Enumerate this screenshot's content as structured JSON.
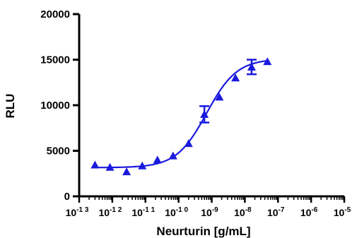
{
  "chart_data": {
    "type": "scatter",
    "xlabel": "Neurturin [g/mL]",
    "ylabel": "RLU",
    "x_scale": "log",
    "xlim": [
      1e-13,
      1e-05
    ],
    "ylim": [
      0,
      20000
    ],
    "grid": false,
    "colors": {
      "series": "#1a1adf",
      "axis": "#000000"
    },
    "y_ticks": [
      {
        "value": 0,
        "label": "0"
      },
      {
        "value": 5000,
        "label": "5000"
      },
      {
        "value": 10000,
        "label": "10000"
      },
      {
        "value": 15000,
        "label": "15000"
      },
      {
        "value": 20000,
        "label": "20000"
      }
    ],
    "x_ticks": [
      {
        "value": 1e-13,
        "base": "10",
        "exp": "-1 3"
      },
      {
        "value": 1e-12,
        "base": "10",
        "exp": "-1 2"
      },
      {
        "value": 1e-11,
        "base": "10",
        "exp": "-1 1"
      },
      {
        "value": 1e-10,
        "base": "10",
        "exp": "-1 0"
      },
      {
        "value": 1e-09,
        "base": "10",
        "exp": "-9"
      },
      {
        "value": 1e-08,
        "base": "10",
        "exp": "-8"
      },
      {
        "value": 1e-07,
        "base": "10",
        "exp": "-7"
      },
      {
        "value": 1e-06,
        "base": "10",
        "exp": "-6"
      },
      {
        "value": 1e-05,
        "base": "10",
        "exp": "-5"
      }
    ],
    "points": [
      {
        "x": 3e-13,
        "y": 3450
      },
      {
        "x": 8.5e-13,
        "y": 3200
      },
      {
        "x": 2.7e-12,
        "y": 2700
      },
      {
        "x": 8e-12,
        "y": 3350
      },
      {
        "x": 2.3e-11,
        "y": 4000
      },
      {
        "x": 6.8e-11,
        "y": 4450
      },
      {
        "x": 2e-10,
        "y": 5800
      },
      {
        "x": 6e-10,
        "y": 9000,
        "err": 900
      },
      {
        "x": 1.7e-09,
        "y": 10900
      },
      {
        "x": 5.2e-09,
        "y": 13000
      },
      {
        "x": 1.6e-08,
        "y": 14200,
        "err": 800
      },
      {
        "x": 4.8e-08,
        "y": 14800
      }
    ],
    "fit": {
      "model": "4PL",
      "bottom": 3150,
      "top": 15100,
      "ec50": 7e-10,
      "hill": 0.95
    }
  }
}
